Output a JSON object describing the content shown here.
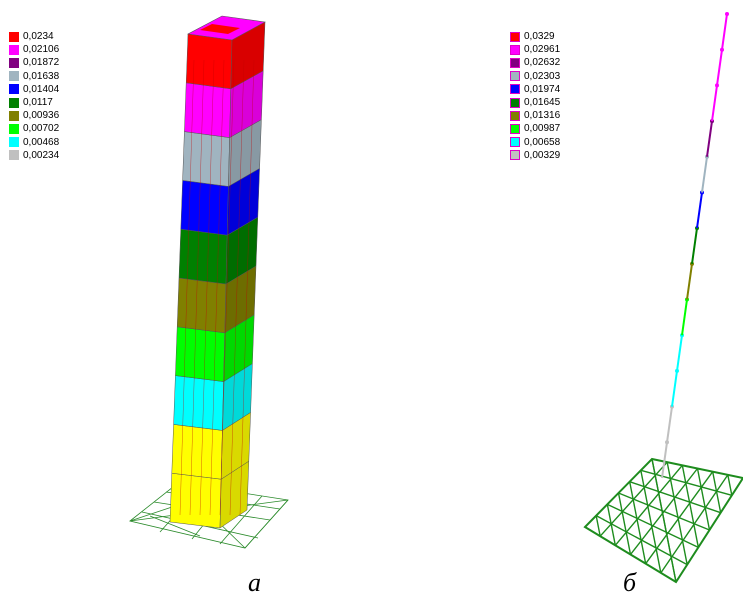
{
  "legend_a": {
    "items": [
      {
        "value": "0,0234",
        "color": "#ff0000"
      },
      {
        "value": "0,02106",
        "color": "#ff00ff"
      },
      {
        "value": "0,01872",
        "color": "#800080"
      },
      {
        "value": "0,01638",
        "color": "#a0b4c0"
      },
      {
        "value": "0,01404",
        "color": "#0000ff"
      },
      {
        "value": "0,0117",
        "color": "#008000"
      },
      {
        "value": "0,00936",
        "color": "#808000"
      },
      {
        "value": "0,00702",
        "color": "#00ff00"
      },
      {
        "value": "0,00468",
        "color": "#00ffff"
      },
      {
        "value": "0,00234",
        "color": "#c0c0c0"
      }
    ]
  },
  "legend_b": {
    "items": [
      {
        "value": "0,0329",
        "color": "#ff0000"
      },
      {
        "value": "0,02961",
        "color": "#ff00ff"
      },
      {
        "value": "0,02632",
        "color": "#800080"
      },
      {
        "value": "0,02303",
        "color": "#a0b4c0"
      },
      {
        "value": "0,01974",
        "color": "#0000ff"
      },
      {
        "value": "0,01645",
        "color": "#008000"
      },
      {
        "value": "0,01316",
        "color": "#808000"
      },
      {
        "value": "0,00987",
        "color": "#00ff00"
      },
      {
        "value": "0,00658",
        "color": "#00ffff"
      },
      {
        "value": "0,00329",
        "color": "#c0c0c0"
      }
    ]
  },
  "captions": {
    "a": "а",
    "b": "б"
  },
  "colors": {
    "base_yellow": "#ffff00",
    "grid_green": "#1e8c1e",
    "foundation_line": "#2a8a2a"
  }
}
